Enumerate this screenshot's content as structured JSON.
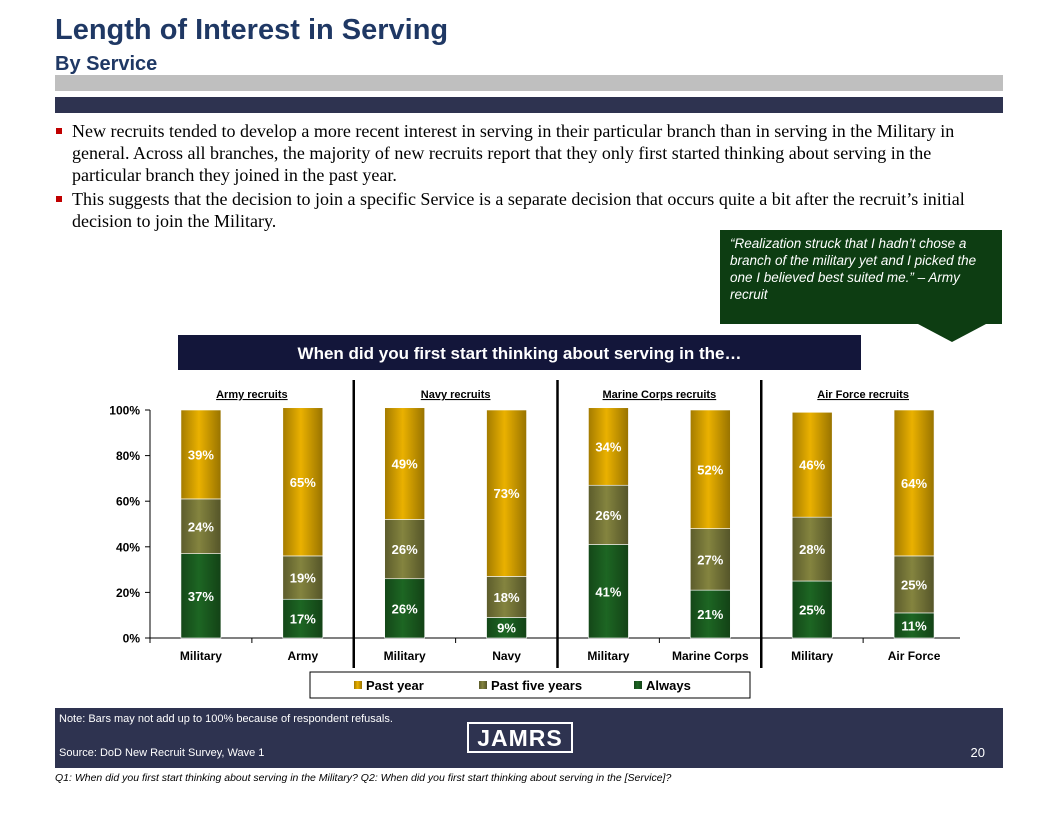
{
  "header": {
    "title": "Length of Interest in Serving",
    "subtitle": "By Service"
  },
  "bullets": [
    "New recruits tended to develop a more recent interest in serving in their particular branch than in serving in the Military in general.  Across all branches, the majority of new recruits report that they only first started thinking about serving in the particular branch they joined in the past year.",
    "This suggests that the decision to join a specific Service is a separate decision that occurs quite a bit after the recruit’s initial decision to join the Military."
  ],
  "callout": "“Realization struck that I hadn’t chose a branch of the military yet and I picked the one I believed best suited me.” – Army recruit",
  "question": "When did you first start thinking about serving in the…",
  "chart_data": {
    "type": "bar",
    "stacked": true,
    "groups": [
      "Army recruits",
      "Navy recruits",
      "Marine Corps recruits",
      "Air Force recruits"
    ],
    "categories": [
      "Military",
      "Army",
      "Military",
      "Navy",
      "Military",
      "Marine Corps",
      "Military",
      "Air Force"
    ],
    "series": [
      {
        "name": "Always",
        "values": [
          37,
          17,
          26,
          9,
          41,
          21,
          25,
          11
        ],
        "color": "#1b5e20"
      },
      {
        "name": "Past five years",
        "values": [
          24,
          19,
          26,
          18,
          26,
          27,
          28,
          25
        ],
        "color": "#7a7a3a"
      },
      {
        "name": "Past year",
        "values": [
          39,
          65,
          49,
          73,
          34,
          52,
          46,
          64
        ],
        "color": "#d9a400"
      }
    ],
    "legend_order": [
      "Past year",
      "Past five years",
      "Always"
    ],
    "ylim": [
      0,
      100
    ],
    "yticks": [
      "0%",
      "20%",
      "40%",
      "60%",
      "80%",
      "100%"
    ],
    "legend_position": "bottom"
  },
  "footer": {
    "note": "Note:  Bars may not add up to 100% because of respondent refusals.",
    "source": "Source:  DoD New Recruit Survey, Wave 1",
    "logo": "JAMRS",
    "page_number": "20"
  },
  "question_note": "Q1:  When did you first start thinking about serving in the Military? Q2:  When did you first start thinking about serving in the [Service]?"
}
